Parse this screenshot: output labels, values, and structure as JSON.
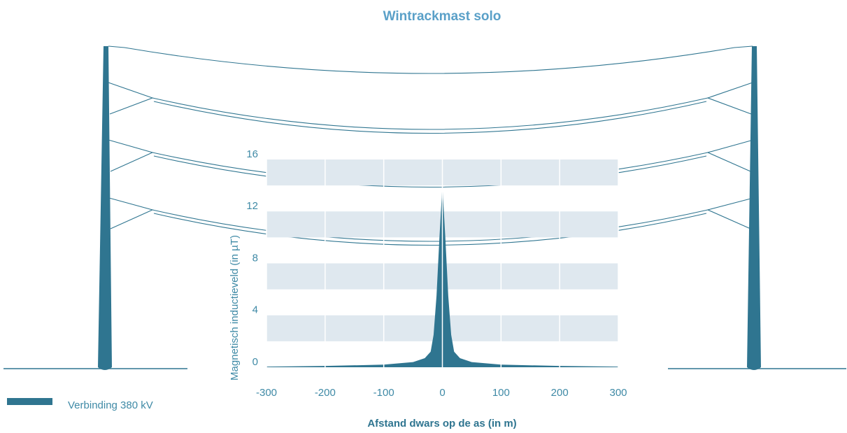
{
  "chart_data": {
    "type": "area",
    "title": "Wintrackmast solo",
    "x_label": "Afstand dwars op de as (in m)",
    "y_label": "Magnetisch inductieveld (in µT)",
    "x": [
      -300,
      -200,
      -100,
      -50,
      -30,
      -20,
      -15,
      -10,
      -5,
      0,
      5,
      10,
      15,
      20,
      30,
      50,
      100,
      200,
      300
    ],
    "series": [
      {
        "name": "Verbinding 380 kV",
        "color": "#2f7590",
        "values": [
          0.05,
          0.1,
          0.2,
          0.4,
          0.7,
          1.2,
          2.5,
          5.5,
          10,
          14,
          10,
          5.5,
          2.5,
          1.2,
          0.7,
          0.4,
          0.2,
          0.1,
          0.05
        ]
      }
    ],
    "xlim": [
      -300,
      300
    ],
    "xticks": [
      -300,
      -200,
      -100,
      0,
      100,
      200,
      300
    ],
    "ylim": [
      0,
      16
    ],
    "yticks": [
      0,
      4,
      8,
      12,
      16
    ],
    "grid": true,
    "legend": "bottom-left"
  }
}
